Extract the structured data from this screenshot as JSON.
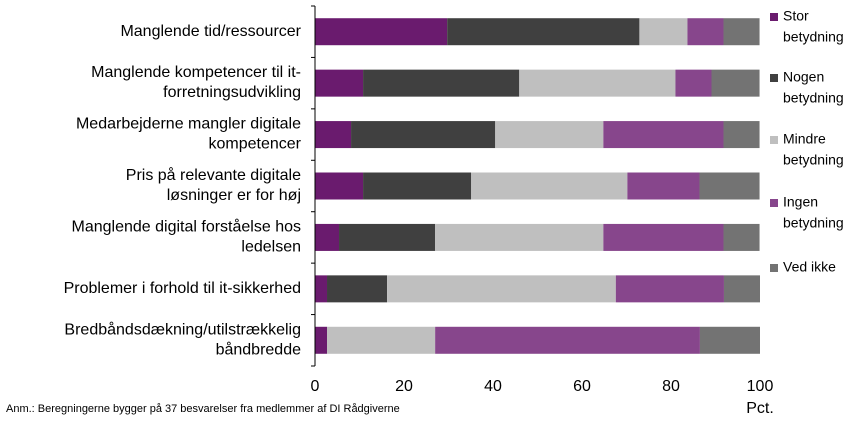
{
  "chart_data": {
    "type": "stacked_barh",
    "categories": [
      "Manglende tid/ressourcer",
      "Manglende kompetencer til it-\nforretningsudvikling",
      "Medarbejderne mangler digitale\nkompetencer",
      "Pris på relevante digitale\nløsninger er for høj",
      "Manglende digital forståelse hos\nledelsen",
      "Problemer i forhold til it-sikkerhed",
      "Bredbåndsdækning/utilstrækkelig\nbåndbredde"
    ],
    "series": [
      {
        "name": "Stor\nbetydning",
        "color": "#6a1b6e",
        "values": [
          29.7,
          10.8,
          8.1,
          10.8,
          5.4,
          2.7,
          2.7
        ]
      },
      {
        "name": "Nogen\nbetydning",
        "color": "#404040",
        "values": [
          43.2,
          35.1,
          32.4,
          24.3,
          21.6,
          13.5,
          0
        ]
      },
      {
        "name": "Mindre\nbetydning",
        "color": "#bfbfbf",
        "values": [
          10.8,
          35.1,
          24.3,
          35.1,
          37.8,
          51.4,
          24.3
        ]
      },
      {
        "name": "Ingen\nbetydning",
        "color": "#87468c",
        "values": [
          8.1,
          8.1,
          27.0,
          16.2,
          27.0,
          24.3,
          59.5
        ]
      },
      {
        "name": "Ved ikke",
        "color": "#737373",
        "values": [
          8.1,
          10.8,
          8.1,
          13.5,
          8.1,
          8.1,
          13.5
        ]
      }
    ],
    "xlim": [
      0,
      100
    ],
    "xticks": [
      0,
      20,
      40,
      60,
      80,
      100
    ],
    "xlabel": "Pct.",
    "note": "Anm.: Beregningerne bygger på 37 besvarelser fra medlemmer af DI Rådgiverne",
    "legend": "right"
  }
}
